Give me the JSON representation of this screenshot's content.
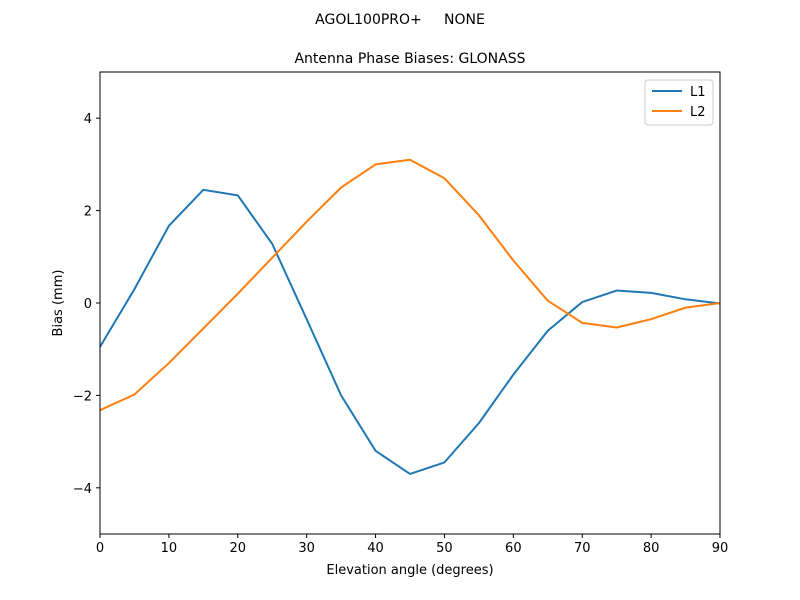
{
  "chart_data": {
    "type": "line",
    "suptitle": "AGOL100PRO+     NONE",
    "title": "Antenna Phase Biases: GLONASS",
    "xlabel": "Elevation angle (degrees)",
    "ylabel": "Bias (mm)",
    "xlim": [
      0,
      90
    ],
    "ylim": [
      -5,
      5
    ],
    "x_ticks": [
      0,
      10,
      20,
      30,
      40,
      50,
      60,
      70,
      80,
      90
    ],
    "y_ticks": [
      -4,
      -2,
      0,
      2,
      4
    ],
    "x_tick_labels": [
      "0",
      "10",
      "20",
      "30",
      "40",
      "50",
      "60",
      "70",
      "80",
      "90"
    ],
    "y_tick_labels": [
      "−4",
      "−2",
      "0",
      "2",
      "4"
    ],
    "grid": false,
    "legend_position": "upper right",
    "x": [
      0,
      5,
      10,
      15,
      20,
      25,
      30,
      35,
      40,
      45,
      50,
      55,
      60,
      65,
      70,
      75,
      80,
      85,
      90
    ],
    "series": [
      {
        "name": "L1",
        "color": "#1f77b4",
        "values": [
          -0.95,
          0.3,
          1.67,
          2.45,
          2.33,
          1.28,
          -0.35,
          -2.0,
          -3.2,
          -3.7,
          -3.45,
          -2.6,
          -1.55,
          -0.6,
          0.02,
          0.27,
          0.22,
          0.08,
          -0.01
        ]
      },
      {
        "name": "L2",
        "color": "#ff7f0e",
        "values": [
          -2.32,
          -1.98,
          -1.3,
          -0.55,
          0.2,
          0.98,
          1.76,
          2.5,
          3.0,
          3.1,
          2.7,
          1.9,
          0.92,
          0.05,
          -0.43,
          -0.53,
          -0.35,
          -0.1,
          0.0
        ]
      }
    ]
  }
}
